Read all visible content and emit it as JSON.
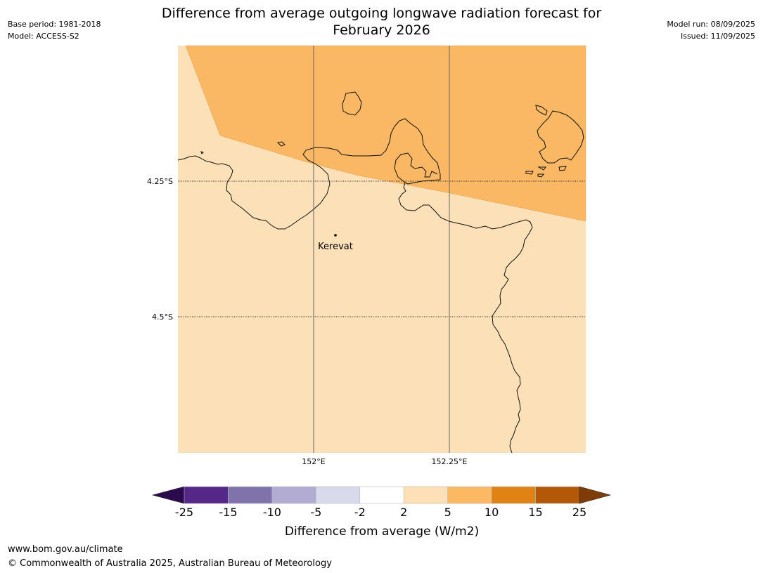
{
  "header": {
    "title_line1": "Difference from average outgoing longwave radiation forecast for",
    "title_line2": "February 2026",
    "base_period": "Base period: 1981-2018",
    "model": "Model: ACCESS-S2",
    "model_run": "Model run: 08/09/2025",
    "issued": "Issued: 11/09/2025"
  },
  "map": {
    "place_label": "Kerevat",
    "lat_labels": [
      "4.25°S",
      "4.5°S"
    ],
    "lon_labels": [
      "152°E",
      "152.25°E"
    ],
    "fill_colors": {
      "band_2_5": "#fce0b7",
      "band_5_10": "#fab764"
    }
  },
  "colorbar": {
    "label": "Difference from average (W/m2)",
    "ticks": [
      "-25",
      "-15",
      "-10",
      "-5",
      "-2",
      "2",
      "5",
      "10",
      "15",
      "25"
    ],
    "extend_low_color": "#2d0a4e",
    "extend_high_color": "#7f3b08",
    "colors": [
      "#542788",
      "#8073ac",
      "#b2abd2",
      "#d8daeb",
      "#ffffff",
      "#fee0b6",
      "#fdb863",
      "#e08214",
      "#b35806"
    ]
  },
  "footer": {
    "url": "www.bom.gov.au/climate",
    "copyright": "© Commonwealth of Australia 2025, Australian Bureau of Meteorology"
  }
}
